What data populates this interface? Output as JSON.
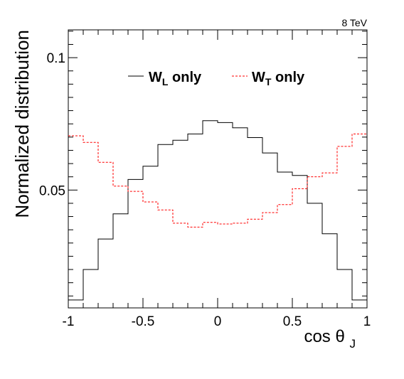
{
  "chart_data": {
    "type": "line",
    "style": "step-histogram",
    "annotation": "8 TeV",
    "xlabel": "cos θ",
    "xlabel_subscript": "J",
    "ylabel": "Normalized distribution",
    "xlim": [
      -1,
      1
    ],
    "ylim": [
      0.0055,
      0.1105
    ],
    "x_ticks": [
      {
        "value": -1,
        "label": "-1"
      },
      {
        "value": -0.5,
        "label": "-0.5"
      },
      {
        "value": 0,
        "label": "0"
      },
      {
        "value": 0.5,
        "label": "0.5"
      },
      {
        "value": 1,
        "label": "1"
      }
    ],
    "y_ticks": [
      {
        "value": 0.05,
        "label": "0.05"
      },
      {
        "value": 0.1,
        "label": "0.1"
      }
    ],
    "grid": false,
    "legend_position": "top-center",
    "bin_edges": [
      -1,
      -0.9,
      -0.8,
      -0.7,
      -0.6,
      -0.5,
      -0.4,
      -0.3,
      -0.2,
      -0.1,
      0,
      0.1,
      0.2,
      0.3,
      0.4,
      0.5,
      0.6,
      0.7,
      0.8,
      0.9,
      1
    ],
    "series": [
      {
        "legend_main": "W",
        "legend_sub": "L",
        "legend_suffix": " only",
        "color": "#000000",
        "dash": "solid",
        "values": [
          0.0085,
          0.02,
          0.0315,
          0.041,
          0.054,
          0.059,
          0.0672,
          0.0688,
          0.0712,
          0.0762,
          0.0755,
          0.0735,
          0.0698,
          0.064,
          0.0568,
          0.0555,
          0.045,
          0.0335,
          0.02,
          0.0085
        ]
      },
      {
        "legend_main": "W",
        "legend_sub": "T",
        "legend_suffix": " only",
        "color": "#ff0000",
        "dash": "dashed",
        "values": [
          0.0705,
          0.068,
          0.0605,
          0.0515,
          0.0495,
          0.0455,
          0.0425,
          0.0375,
          0.036,
          0.0378,
          0.0372,
          0.0375,
          0.039,
          0.0415,
          0.0445,
          0.0505,
          0.055,
          0.0565,
          0.0665,
          0.0712
        ]
      }
    ]
  }
}
